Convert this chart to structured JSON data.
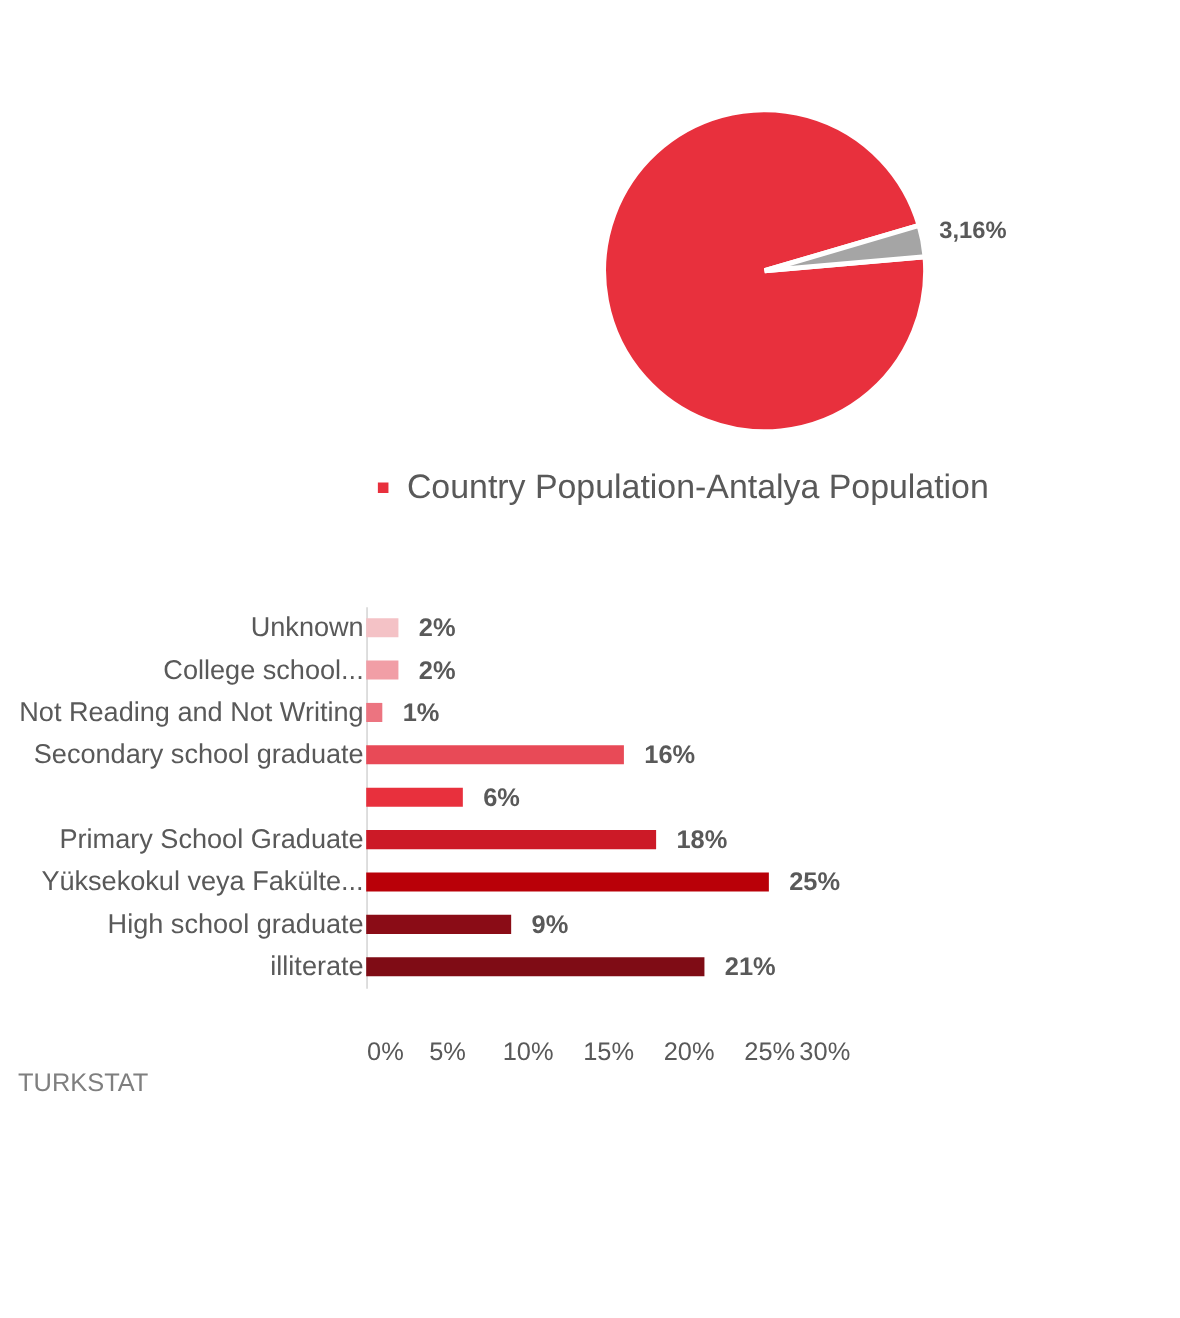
{
  "chart_data": [
    {
      "type": "pie",
      "categories": [
        "Country Population-Antalya Population",
        null
      ],
      "values": [
        96.84,
        3.16
      ],
      "colors": [
        "#e8303d",
        "#a5a5a5"
      ],
      "value_labels": [
        null,
        "3,16%"
      ],
      "legend": "bottom"
    },
    {
      "type": "bar",
      "orientation": "horizontal",
      "categories": [
        "Unknown",
        "College school...",
        "Not Reading and Not Writing",
        "Secondary school graduate",
        null,
        "Primary School Graduate",
        "Yüksekokul veya Fakülte...",
        "High school graduate",
        "illiterate"
      ],
      "values": [
        2,
        2,
        1,
        16,
        6,
        18,
        25,
        9,
        21
      ],
      "colors": [
        "#f4c2c6",
        "#f19ea6",
        "#ec7480",
        "#e84a57",
        "#e8303d",
        "#cc1a27",
        "#b90008",
        "#8a0c16",
        "#7f0c15"
      ],
      "value_labels": [
        "2%",
        "2%",
        "1%",
        "16%",
        "6%",
        "18%",
        "25%",
        "9%",
        "21%"
      ],
      "xlim": [
        0,
        30
      ],
      "xticks": [
        {
          "value": 0,
          "label": "0%"
        },
        {
          "value": 5,
          "label": "5%"
        },
        {
          "value": 10,
          "label": "10%"
        },
        {
          "value": 15,
          "label": "15%"
        },
        {
          "value": 20,
          "label": "20%"
        },
        {
          "value": 25,
          "label": "25%"
        },
        {
          "value": 30,
          "label": "30%"
        }
      ],
      "grid": false,
      "annotations": [
        "TURKSTAT"
      ]
    }
  ]
}
